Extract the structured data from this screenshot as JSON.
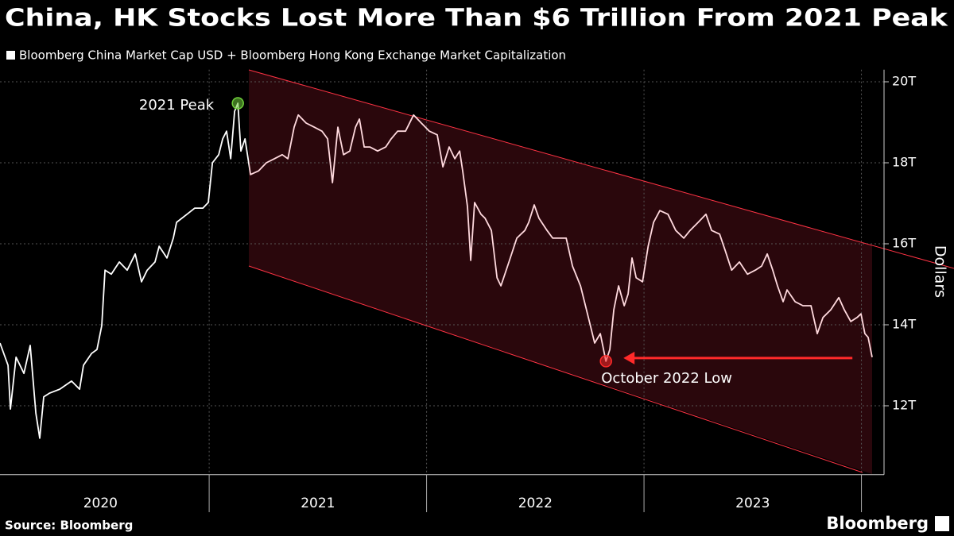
{
  "chart_data": {
    "type": "line",
    "title": "China, HK Stocks Lost More Than $6 Trillion From 2021 Peak",
    "y_label": "Dollars",
    "source": "Source: Bloomberg",
    "logo": "Bloomberg",
    "xlim": [
      2020.038,
      2024.104
    ],
    "ylim": [
      10.3,
      20.3
    ],
    "xticks": [
      {
        "value": 2020.5,
        "label": "2020"
      },
      {
        "value": 2021.5,
        "label": "2021"
      },
      {
        "value": 2022.5,
        "label": "2022"
      },
      {
        "value": 2023.5,
        "label": "2023"
      }
    ],
    "yticks": [
      {
        "value": 12,
        "label": "12T"
      },
      {
        "value": 14,
        "label": "14T"
      },
      {
        "value": 16,
        "label": "16T"
      },
      {
        "value": 18,
        "label": "18T"
      },
      {
        "value": 20,
        "label": "20T"
      }
    ],
    "grid": true,
    "x": [
      2020.038,
      2020.075,
      2020.086,
      2020.112,
      2020.148,
      2020.177,
      2020.203,
      2020.221,
      2020.239,
      2020.265,
      2020.313,
      2020.367,
      2020.404,
      2020.422,
      2020.459,
      2020.484,
      2020.506,
      2020.521,
      2020.55,
      2020.587,
      2020.623,
      2020.66,
      2020.689,
      2020.715,
      2020.751,
      2020.77,
      2020.806,
      2020.835,
      2020.85,
      2020.898,
      2020.934,
      2020.971,
      2020.996,
      2021.015,
      2021.044,
      2021.062,
      2021.08,
      2021.099,
      2021.117,
      2021.132,
      2021.146,
      2021.165,
      2021.19,
      2021.227,
      2021.263,
      2021.3,
      2021.336,
      2021.362,
      2021.391,
      2021.41,
      2021.446,
      2021.483,
      2021.519,
      2021.545,
      2021.567,
      2021.592,
      2021.618,
      2021.647,
      2021.673,
      2021.691,
      2021.713,
      2021.739,
      2021.775,
      2021.812,
      2021.837,
      2021.867,
      2021.903,
      2021.94,
      2021.976,
      2022.013,
      2022.049,
      2022.075,
      2022.104,
      2022.13,
      2022.152,
      2022.166,
      2022.188,
      2022.203,
      2022.221,
      2022.25,
      2022.269,
      2022.298,
      2022.324,
      2022.342,
      2022.379,
      2022.415,
      2022.452,
      2022.47,
      2022.495,
      2022.517,
      2022.554,
      2022.58,
      2022.616,
      2022.642,
      2022.671,
      2022.708,
      2022.744,
      2022.773,
      2022.799,
      2022.825,
      2022.843,
      2022.861,
      2022.883,
      2022.909,
      2022.927,
      2022.945,
      2022.964,
      2022.993,
      2023.019,
      2023.044,
      2023.073,
      2023.11,
      2023.146,
      2023.183,
      2023.212,
      2023.249,
      2023.285,
      2023.311,
      2023.348,
      2023.373,
      2023.403,
      2023.439,
      2023.476,
      2023.512,
      2023.541,
      2023.567,
      2023.592,
      2023.614,
      2023.64,
      2023.658,
      2023.695,
      2023.731,
      2023.768,
      2023.797,
      2023.823,
      2023.859,
      2023.896,
      2023.921,
      2023.951,
      2023.98,
      2023.998,
      2024.016,
      2024.031,
      2024.049
    ],
    "series": [
      {
        "name": "Bloomberg China Market Cap USD + Bloomberg Hong Kong Exchange Market Capitalization",
        "color": "#ffffff",
        "values": [
          13.55,
          13.0,
          11.92,
          13.2,
          12.8,
          13.49,
          11.82,
          11.2,
          12.22,
          12.31,
          12.41,
          12.61,
          12.41,
          13.0,
          13.29,
          13.39,
          13.98,
          15.35,
          15.25,
          15.55,
          15.35,
          15.75,
          15.06,
          15.35,
          15.55,
          15.94,
          15.65,
          16.14,
          16.53,
          16.73,
          16.88,
          16.88,
          17.02,
          18.0,
          18.2,
          18.59,
          18.78,
          18.1,
          19.27,
          19.47,
          18.29,
          18.59,
          17.71,
          17.8,
          18.0,
          18.1,
          18.2,
          18.1,
          18.88,
          19.18,
          18.98,
          18.88,
          18.78,
          18.59,
          17.51,
          18.88,
          18.2,
          18.29,
          18.88,
          19.08,
          18.39,
          18.39,
          18.29,
          18.39,
          18.59,
          18.78,
          18.78,
          19.18,
          18.98,
          18.78,
          18.69,
          17.9,
          18.39,
          18.1,
          18.29,
          17.8,
          16.92,
          15.59,
          17.02,
          16.73,
          16.63,
          16.33,
          15.16,
          14.96,
          15.55,
          16.14,
          16.33,
          16.53,
          16.96,
          16.63,
          16.33,
          16.14,
          16.14,
          16.14,
          15.45,
          14.96,
          14.18,
          13.55,
          13.78,
          13.1,
          13.39,
          14.37,
          14.96,
          14.47,
          14.76,
          15.65,
          15.16,
          15.06,
          15.94,
          16.53,
          16.82,
          16.73,
          16.33,
          16.14,
          16.33,
          16.53,
          16.73,
          16.33,
          16.24,
          15.84,
          15.35,
          15.55,
          15.25,
          15.35,
          15.45,
          15.75,
          15.35,
          14.96,
          14.57,
          14.86,
          14.57,
          14.47,
          14.47,
          13.78,
          14.18,
          14.37,
          14.67,
          14.37,
          14.08,
          14.18,
          14.27,
          13.78,
          13.69,
          13.2
        ]
      }
    ],
    "annotations": [
      {
        "text": "2021 Peak",
        "x": 2021.132,
        "y": 19.47,
        "color": "#6fcf3a"
      },
      {
        "text": "October 2022 Low",
        "x": 2022.825,
        "y": 13.1,
        "color": "#ff2a2a"
      }
    ]
  }
}
